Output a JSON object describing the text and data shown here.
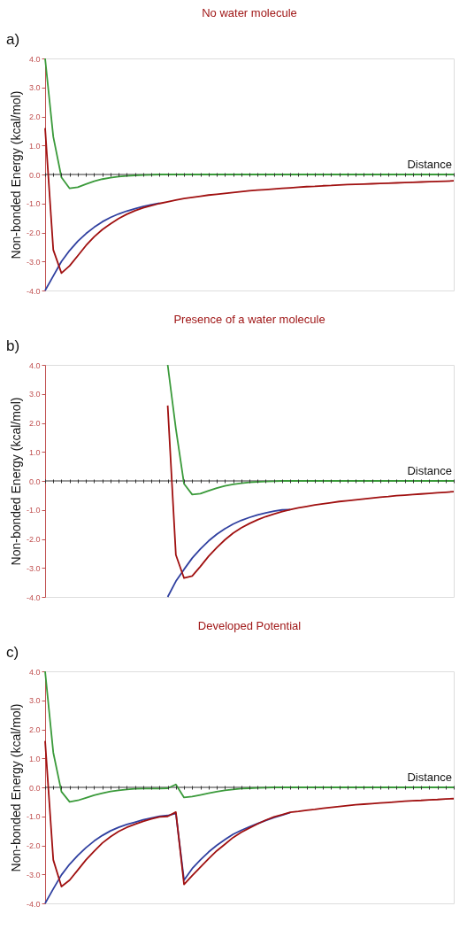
{
  "chart_data": [
    {
      "type": "line",
      "title": "No water molecule",
      "ref_lines": [
        {
          "axis": "y",
          "value": 0,
          "color": "#333333"
        }
      ],
      "annotations": [
        "a)"
      ],
      "xlabel": "Distance",
      "ylabel": "Non-bonded Energy (kcal/mol)",
      "tick_labels": "y",
      "legend": false,
      "grid": false,
      "marker": "none",
      "line_style": "solid",
      "categories": [
        null,
        null,
        null,
        null,
        null,
        null,
        null,
        null,
        null,
        null,
        null,
        null,
        null,
        null,
        null,
        null,
        null,
        null,
        null,
        null,
        null,
        null,
        null,
        null,
        null,
        null,
        null,
        null,
        null,
        null,
        null,
        null,
        null,
        null,
        null,
        null,
        null,
        null,
        null,
        null,
        null,
        null,
        null,
        null,
        null,
        null,
        null,
        null,
        null,
        null,
        null
      ],
      "ylim": [
        -4,
        4
      ],
      "yticks": [
        {
          "value": 4,
          "label": "4.0"
        },
        {
          "value": 3,
          "label": "3.0"
        },
        {
          "value": 2,
          "label": "2.0"
        },
        {
          "value": 1,
          "label": "1.0"
        },
        {
          "value": 0,
          "label": "0.0"
        },
        {
          "value": -1,
          "label": "-1.0"
        },
        {
          "value": -2,
          "label": "-2.0"
        },
        {
          "value": -3,
          "label": "-3.0"
        },
        {
          "value": -4,
          "label": "-4.0"
        }
      ],
      "series": [
        {
          "color": "#3a9a3a",
          "values": [
            4.0,
            1.3,
            -0.1,
            -0.48,
            -0.44,
            -0.33,
            -0.23,
            -0.16,
            -0.11,
            -0.07,
            -0.05,
            -0.03,
            -0.02,
            -0.01,
            0,
            0,
            0,
            0,
            0,
            0,
            0,
            0,
            0,
            0,
            0,
            0,
            0,
            0,
            0,
            0,
            0,
            0,
            0,
            0,
            0,
            0,
            0,
            0,
            0,
            0,
            0,
            0,
            0,
            0,
            0,
            0,
            0,
            0,
            0,
            0,
            0
          ]
        },
        {
          "color": "#3040a0",
          "values": [
            -4.0,
            -3.5,
            -3.0,
            -2.62,
            -2.3,
            -2.04,
            -1.82,
            -1.63,
            -1.48,
            -1.36,
            -1.26,
            -1.18,
            -1.1,
            -1.04,
            -0.99,
            null,
            null,
            null,
            null,
            null,
            null,
            null,
            null,
            null,
            null,
            null,
            null,
            null,
            null,
            null,
            null,
            null,
            null,
            null,
            null,
            null,
            null,
            null,
            null,
            null,
            null,
            null,
            null,
            null,
            null,
            null,
            null,
            null,
            null,
            null,
            null
          ]
        },
        {
          "color": "#a01010",
          "values": [
            1.6,
            -2.6,
            -3.4,
            -3.15,
            -2.8,
            -2.45,
            -2.15,
            -1.9,
            -1.7,
            -1.52,
            -1.37,
            -1.25,
            -1.15,
            -1.07,
            -1.0,
            -0.94,
            -0.88,
            -0.83,
            -0.79,
            -0.75,
            -0.71,
            -0.68,
            -0.65,
            -0.62,
            -0.59,
            -0.56,
            -0.54,
            -0.52,
            -0.5,
            -0.48,
            -0.46,
            -0.44,
            -0.42,
            -0.41,
            -0.39,
            -0.38,
            -0.36,
            -0.35,
            -0.34,
            -0.33,
            -0.32,
            -0.31,
            -0.3,
            -0.29,
            -0.28,
            -0.27,
            -0.26,
            -0.25,
            -0.24,
            -0.23,
            -0.22
          ]
        }
      ]
    },
    {
      "type": "line",
      "title": "Presence of a water molecule",
      "ref_lines": [
        {
          "axis": "y",
          "value": 0,
          "color": "#333333"
        }
      ],
      "annotations": [
        "b)"
      ],
      "xlabel": "Distance",
      "ylabel": "Non-bonded Energy (kcal/mol)",
      "tick_labels": "y",
      "legend": false,
      "grid": false,
      "marker": "none",
      "line_style": "solid",
      "categories": [
        null,
        null,
        null,
        null,
        null,
        null,
        null,
        null,
        null,
        null,
        null,
        null,
        null,
        null,
        null,
        null,
        null,
        null,
        null,
        null,
        null,
        null,
        null,
        null,
        null,
        null,
        null,
        null,
        null,
        null,
        null,
        null,
        null,
        null,
        null,
        null,
        null,
        null,
        null,
        null,
        null,
        null,
        null,
        null,
        null,
        null,
        null,
        null,
        null,
        null,
        null
      ],
      "ylim": [
        -4,
        4
      ],
      "yticks": [
        {
          "value": 4,
          "label": "4.0"
        },
        {
          "value": 3,
          "label": "3.0"
        },
        {
          "value": 2,
          "label": "2.0"
        },
        {
          "value": 1,
          "label": "1.0"
        },
        {
          "value": 0,
          "label": "0.0"
        },
        {
          "value": -1,
          "label": "-1.0"
        },
        {
          "value": -2,
          "label": "-2.0"
        },
        {
          "value": -3,
          "label": "-3.0"
        },
        {
          "value": -4,
          "label": "-4.0"
        }
      ],
      "series": [
        {
          "color": "#3a9a3a",
          "values": [
            null,
            null,
            null,
            null,
            null,
            null,
            null,
            null,
            null,
            null,
            null,
            null,
            null,
            null,
            null,
            4.0,
            1.8,
            -0.1,
            -0.47,
            -0.44,
            -0.34,
            -0.25,
            -0.17,
            -0.12,
            -0.08,
            -0.05,
            -0.03,
            -0.02,
            -0.01,
            0,
            0,
            0,
            0,
            0,
            0,
            0,
            0,
            0,
            0,
            0,
            0,
            0,
            0,
            0,
            0,
            0,
            0,
            0,
            0,
            0,
            0
          ]
        },
        {
          "color": "#3040a0",
          "values": [
            null,
            null,
            null,
            null,
            null,
            null,
            null,
            null,
            null,
            null,
            null,
            null,
            null,
            null,
            null,
            -4.0,
            -3.46,
            -3.05,
            -2.66,
            -2.35,
            -2.07,
            -1.84,
            -1.65,
            -1.49,
            -1.36,
            -1.26,
            -1.17,
            -1.1,
            -1.04,
            -1.0,
            -0.99,
            null,
            null,
            null,
            null,
            null,
            null,
            null,
            null,
            null,
            null,
            null,
            null,
            null,
            null,
            null,
            null,
            null,
            null,
            null,
            null
          ]
        },
        {
          "color": "#a01010",
          "values": [
            null,
            null,
            null,
            null,
            null,
            null,
            null,
            null,
            null,
            null,
            null,
            null,
            null,
            null,
            null,
            2.6,
            -2.55,
            -3.35,
            -3.28,
            -2.95,
            -2.6,
            -2.3,
            -2.03,
            -1.8,
            -1.62,
            -1.47,
            -1.34,
            -1.23,
            -1.14,
            -1.06,
            -0.99,
            -0.93,
            -0.88,
            -0.83,
            -0.79,
            -0.75,
            -0.71,
            -0.68,
            -0.65,
            -0.62,
            -0.59,
            -0.56,
            -0.54,
            -0.51,
            -0.49,
            -0.47,
            -0.45,
            -0.43,
            -0.41,
            -0.39,
            -0.37
          ]
        }
      ]
    },
    {
      "type": "line",
      "title": "Developed Potential",
      "ref_lines": [
        {
          "axis": "y",
          "value": 0,
          "color": "#333333"
        }
      ],
      "annotations": [
        "c)"
      ],
      "xlabel": "Distance",
      "ylabel": "Non-bonded Energy (kcal/mol)",
      "tick_labels": "y",
      "legend": false,
      "grid": false,
      "marker": "none",
      "line_style": "solid",
      "categories": [
        null,
        null,
        null,
        null,
        null,
        null,
        null,
        null,
        null,
        null,
        null,
        null,
        null,
        null,
        null,
        null,
        null,
        null,
        null,
        null,
        null,
        null,
        null,
        null,
        null,
        null,
        null,
        null,
        null,
        null,
        null,
        null,
        null,
        null,
        null,
        null,
        null,
        null,
        null,
        null,
        null,
        null,
        null,
        null,
        null,
        null,
        null,
        null,
        null,
        null,
        null
      ],
      "ylim": [
        -4,
        4
      ],
      "yticks": [
        {
          "value": 4,
          "label": "4.0"
        },
        {
          "value": 3,
          "label": "3.0"
        },
        {
          "value": 2,
          "label": "2.0"
        },
        {
          "value": 1,
          "label": "1.0"
        },
        {
          "value": 0,
          "label": "0.0"
        },
        {
          "value": -1,
          "label": "-1.0"
        },
        {
          "value": -2,
          "label": "-2.0"
        },
        {
          "value": -3,
          "label": "-3.0"
        },
        {
          "value": -4,
          "label": "-4.0"
        }
      ],
      "series": [
        {
          "color": "#3a9a3a",
          "values": [
            4.0,
            1.2,
            -0.15,
            -0.5,
            -0.45,
            -0.36,
            -0.27,
            -0.2,
            -0.14,
            -0.1,
            -0.07,
            -0.05,
            -0.04,
            -0.04,
            -0.04,
            -0.03,
            0.1,
            -0.35,
            -0.32,
            -0.26,
            -0.2,
            -0.15,
            -0.1,
            -0.07,
            -0.04,
            -0.03,
            -0.02,
            -0.01,
            0,
            0,
            0,
            0,
            0,
            0,
            0,
            0,
            0,
            0,
            0,
            0,
            0,
            0,
            0,
            0,
            0,
            0,
            0,
            0,
            0,
            0,
            0
          ]
        },
        {
          "color": "#3040a0",
          "values": [
            -4.0,
            -3.5,
            -3.02,
            -2.65,
            -2.35,
            -2.08,
            -1.85,
            -1.66,
            -1.5,
            -1.38,
            -1.28,
            -1.2,
            -1.12,
            -1.06,
            -1.0,
            -0.97,
            -0.9,
            -3.2,
            -2.8,
            -2.5,
            -2.23,
            -2.0,
            -1.8,
            -1.62,
            -1.48,
            -1.36,
            -1.25,
            -1.14,
            -1.04,
            -0.96,
            -0.87,
            null,
            null,
            null,
            null,
            null,
            null,
            null,
            null,
            null,
            null,
            null,
            null,
            null,
            null,
            null,
            null,
            null,
            null,
            null,
            null
          ]
        },
        {
          "color": "#a01010",
          "values": [
            1.6,
            -2.5,
            -3.42,
            -3.2,
            -2.85,
            -2.5,
            -2.2,
            -1.92,
            -1.7,
            -1.52,
            -1.38,
            -1.27,
            -1.17,
            -1.09,
            -1.02,
            -1.0,
            -0.85,
            -3.35,
            -3.04,
            -2.75,
            -2.46,
            -2.19,
            -1.96,
            -1.73,
            -1.55,
            -1.4,
            -1.26,
            -1.13,
            -1.02,
            -0.94,
            -0.86,
            -0.83,
            -0.79,
            -0.76,
            -0.72,
            -0.69,
            -0.66,
            -0.63,
            -0.6,
            -0.58,
            -0.56,
            -0.54,
            -0.52,
            -0.5,
            -0.48,
            -0.46,
            -0.45,
            -0.43,
            -0.42,
            -0.4,
            -0.39
          ]
        }
      ]
    }
  ]
}
